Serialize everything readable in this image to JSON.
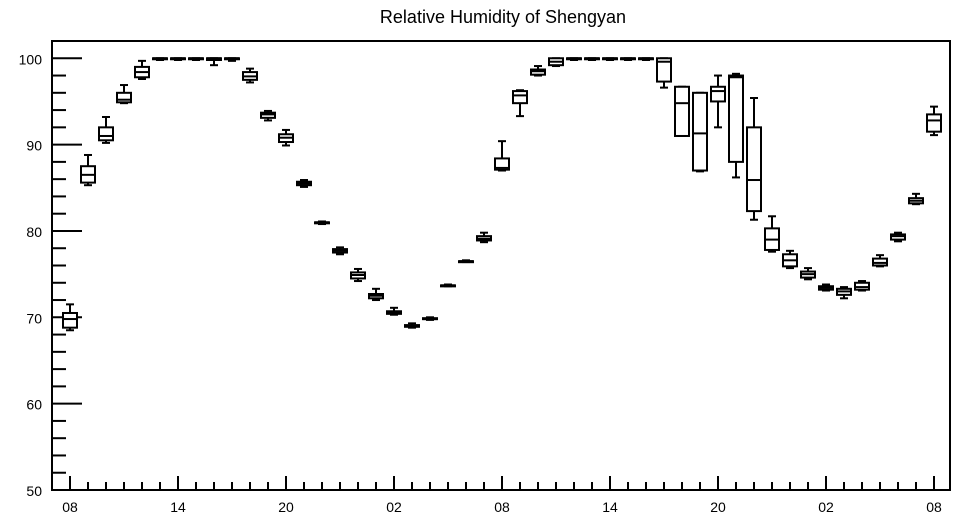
{
  "chart_data": {
    "type": "boxplot",
    "title": "Relative Humidity of Shengyan",
    "xlabel": "",
    "ylabel": "",
    "ylim": [
      50,
      102
    ],
    "yticks": [
      50,
      60,
      70,
      80,
      90,
      100
    ],
    "xlim": [
      0,
      48.5
    ],
    "xticks": [
      {
        "x": 0,
        "label": "08"
      },
      {
        "x": 6,
        "label": "14"
      },
      {
        "x": 12,
        "label": "20"
      },
      {
        "x": 18,
        "label": "02"
      },
      {
        "x": 24,
        "label": "08"
      },
      {
        "x": 30,
        "label": "14"
      },
      {
        "x": 36,
        "label": "20"
      },
      {
        "x": 42,
        "label": "02"
      },
      {
        "x": 48,
        "label": "08"
      }
    ],
    "boxes": [
      {
        "x": 0,
        "min": 68.5,
        "q1": 68.8,
        "median": 69.8,
        "q3": 70.5,
        "max": 71.5
      },
      {
        "x": 1,
        "min": 85.3,
        "q1": 85.6,
        "median": 86.5,
        "q3": 87.5,
        "max": 88.8
      },
      {
        "x": 2,
        "min": 90.2,
        "q1": 90.5,
        "median": 91.0,
        "q3": 92.0,
        "max": 93.2
      },
      {
        "x": 3,
        "min": 94.8,
        "q1": 94.9,
        "median": 95.2,
        "q3": 96.0,
        "max": 96.9
      },
      {
        "x": 4,
        "min": 97.6,
        "q1": 97.8,
        "median": 98.4,
        "q3": 99.0,
        "max": 99.7
      },
      {
        "x": 5,
        "min": 99.8,
        "q1": 99.9,
        "median": 100.0,
        "q3": 100.0,
        "max": 100.0
      },
      {
        "x": 6,
        "min": 99.8,
        "q1": 99.9,
        "median": 100.0,
        "q3": 100.0,
        "max": 100.0
      },
      {
        "x": 7,
        "min": 99.8,
        "q1": 99.9,
        "median": 100.0,
        "q3": 100.0,
        "max": 100.0
      },
      {
        "x": 8,
        "min": 99.2,
        "q1": 99.8,
        "median": 100.0,
        "q3": 100.0,
        "max": 100.0
      },
      {
        "x": 9,
        "min": 99.7,
        "q1": 99.9,
        "median": 100.0,
        "q3": 100.0,
        "max": 100.0
      },
      {
        "x": 10,
        "min": 97.2,
        "q1": 97.5,
        "median": 97.9,
        "q3": 98.4,
        "max": 98.8
      },
      {
        "x": 11,
        "min": 92.8,
        "q1": 93.1,
        "median": 93.5,
        "q3": 93.7,
        "max": 93.9
      },
      {
        "x": 12,
        "min": 89.9,
        "q1": 90.3,
        "median": 90.8,
        "q3": 91.2,
        "max": 91.7
      },
      {
        "x": 13,
        "min": 85.1,
        "q1": 85.3,
        "median": 85.5,
        "q3": 85.7,
        "max": 85.9
      },
      {
        "x": 14,
        "min": 80.8,
        "q1": 80.9,
        "median": 81.0,
        "q3": 81.0,
        "max": 81.1
      },
      {
        "x": 15,
        "min": 77.3,
        "q1": 77.5,
        "median": 77.7,
        "q3": 77.9,
        "max": 78.1
      },
      {
        "x": 16,
        "min": 74.2,
        "q1": 74.5,
        "median": 74.9,
        "q3": 75.2,
        "max": 75.6
      },
      {
        "x": 17,
        "min": 72.0,
        "q1": 72.2,
        "median": 72.5,
        "q3": 72.7,
        "max": 73.3
      },
      {
        "x": 18,
        "min": 70.3,
        "q1": 70.4,
        "median": 70.6,
        "q3": 70.7,
        "max": 71.1
      },
      {
        "x": 19,
        "min": 68.8,
        "q1": 68.9,
        "median": 69.0,
        "q3": 69.1,
        "max": 69.3
      },
      {
        "x": 20,
        "min": 69.7,
        "q1": 69.8,
        "median": 69.8,
        "q3": 69.9,
        "max": 70.0
      },
      {
        "x": 21,
        "min": 73.6,
        "q1": 73.6,
        "median": 73.7,
        "q3": 73.7,
        "max": 73.8
      },
      {
        "x": 22,
        "min": 76.4,
        "q1": 76.4,
        "median": 76.5,
        "q3": 76.5,
        "max": 76.6
      },
      {
        "x": 23,
        "min": 78.7,
        "q1": 78.9,
        "median": 79.1,
        "q3": 79.4,
        "max": 79.8
      },
      {
        "x": 24,
        "min": 87.0,
        "q1": 87.1,
        "median": 87.3,
        "q3": 88.4,
        "max": 90.4
      },
      {
        "x": 25,
        "min": 93.3,
        "q1": 94.8,
        "median": 95.7,
        "q3": 96.2,
        "max": 96.3
      },
      {
        "x": 26,
        "min": 98.0,
        "q1": 98.1,
        "median": 98.5,
        "q3": 98.7,
        "max": 99.1
      },
      {
        "x": 27,
        "min": 99.1,
        "q1": 99.2,
        "median": 99.6,
        "q3": 100.0,
        "max": 100.0
      },
      {
        "x": 28,
        "min": 99.8,
        "q1": 99.9,
        "median": 100.0,
        "q3": 100.0,
        "max": 100.0
      },
      {
        "x": 29,
        "min": 99.8,
        "q1": 99.9,
        "median": 100.0,
        "q3": 100.0,
        "max": 100.0
      },
      {
        "x": 30,
        "min": 99.8,
        "q1": 99.9,
        "median": 100.0,
        "q3": 100.0,
        "max": 100.0
      },
      {
        "x": 31,
        "min": 99.8,
        "q1": 99.9,
        "median": 100.0,
        "q3": 100.0,
        "max": 100.0
      },
      {
        "x": 32,
        "min": 99.8,
        "q1": 99.9,
        "median": 100.0,
        "q3": 100.0,
        "max": 100.0
      },
      {
        "x": 33,
        "min": 96.6,
        "q1": 97.3,
        "median": 99.6,
        "q3": 100.0,
        "max": 100.0
      },
      {
        "x": 34,
        "min": 91.0,
        "q1": 91.0,
        "median": 94.8,
        "q3": 96.7,
        "max": 96.7
      },
      {
        "x": 35,
        "min": 86.9,
        "q1": 87.0,
        "median": 91.3,
        "q3": 96.0,
        "max": 96.0
      },
      {
        "x": 36,
        "min": 92.0,
        "q1": 95.0,
        "median": 96.2,
        "q3": 96.7,
        "max": 98.0
      },
      {
        "x": 37,
        "min": 86.2,
        "q1": 88.0,
        "median": 97.8,
        "q3": 98.0,
        "max": 98.2
      },
      {
        "x": 38,
        "min": 81.3,
        "q1": 82.3,
        "median": 85.9,
        "q3": 92.0,
        "max": 95.4
      },
      {
        "x": 39,
        "min": 77.6,
        "q1": 77.8,
        "median": 79.0,
        "q3": 80.3,
        "max": 81.7
      },
      {
        "x": 40,
        "min": 75.7,
        "q1": 75.9,
        "median": 76.6,
        "q3": 77.3,
        "max": 77.7
      },
      {
        "x": 41,
        "min": 74.4,
        "q1": 74.6,
        "median": 75.0,
        "q3": 75.3,
        "max": 75.7
      },
      {
        "x": 42,
        "min": 73.1,
        "q1": 73.2,
        "median": 73.4,
        "q3": 73.6,
        "max": 73.8
      },
      {
        "x": 43,
        "min": 72.2,
        "q1": 72.6,
        "median": 73.0,
        "q3": 73.3,
        "max": 73.5
      },
      {
        "x": 44,
        "min": 73.1,
        "q1": 73.2,
        "median": 73.5,
        "q3": 74.0,
        "max": 74.2
      },
      {
        "x": 45,
        "min": 75.9,
        "q1": 76.0,
        "median": 76.3,
        "q3": 76.8,
        "max": 77.2
      },
      {
        "x": 46,
        "min": 78.8,
        "q1": 79.0,
        "median": 79.4,
        "q3": 79.6,
        "max": 79.8
      },
      {
        "x": 47,
        "min": 83.1,
        "q1": 83.2,
        "median": 83.5,
        "q3": 83.8,
        "max": 84.3
      },
      {
        "x": 48,
        "min": 91.1,
        "q1": 91.5,
        "median": 92.8,
        "q3": 93.5,
        "max": 94.4
      }
    ]
  }
}
